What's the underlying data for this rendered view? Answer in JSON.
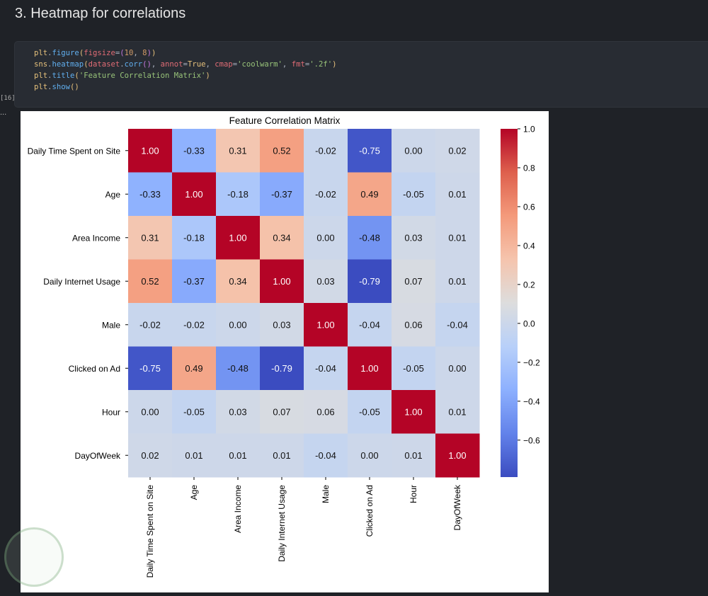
{
  "heading": "3. Heatmap for correlations",
  "cell": {
    "execution_count": "[16]",
    "output_prompt": "...",
    "code_lines": [
      [
        [
          "plt",
          "t-plt"
        ],
        [
          ".",
          "t-pl"
        ],
        [
          "figure",
          "t-fn"
        ],
        [
          "(",
          "t-p1"
        ],
        [
          "figsize",
          "t-par"
        ],
        [
          "=",
          "t-pl"
        ],
        [
          "(",
          "t-p2"
        ],
        [
          "10",
          "t-num"
        ],
        [
          ", ",
          "t-pl"
        ],
        [
          "8",
          "t-num"
        ],
        [
          ")",
          "t-p2"
        ],
        [
          ")",
          "t-p1"
        ]
      ],
      [
        [
          "sns",
          "t-plt"
        ],
        [
          ".",
          "t-pl"
        ],
        [
          "heatmap",
          "t-fn"
        ],
        [
          "(",
          "t-p1"
        ],
        [
          "dataset",
          "t-par"
        ],
        [
          ".",
          "t-pl"
        ],
        [
          "corr",
          "t-fn"
        ],
        [
          "()",
          "t-p2"
        ],
        [
          ", ",
          "t-pl"
        ],
        [
          "annot",
          "t-par"
        ],
        [
          "=",
          "t-pl"
        ],
        [
          "True",
          "t-plt"
        ],
        [
          ", ",
          "t-pl"
        ],
        [
          "cmap",
          "t-par"
        ],
        [
          "=",
          "t-pl"
        ],
        [
          "'coolwarm'",
          "t-str"
        ],
        [
          ", ",
          "t-pl"
        ],
        [
          "fmt",
          "t-par"
        ],
        [
          "=",
          "t-pl"
        ],
        [
          "'.2f'",
          "t-str"
        ],
        [
          ")",
          "t-p1"
        ]
      ],
      [
        [
          "plt",
          "t-plt"
        ],
        [
          ".",
          "t-pl"
        ],
        [
          "title",
          "t-fn"
        ],
        [
          "(",
          "t-p1"
        ],
        [
          "'Feature Correlation Matrix'",
          "t-str"
        ],
        [
          ")",
          "t-p1"
        ]
      ],
      [
        [
          "plt",
          "t-plt"
        ],
        [
          ".",
          "t-pl"
        ],
        [
          "show",
          "t-fn"
        ],
        [
          "()",
          "t-p1"
        ]
      ]
    ]
  },
  "chart_data": {
    "type": "heatmap",
    "title": "Feature Correlation Matrix",
    "labels": [
      "Daily Time Spent on Site",
      "Age",
      "Area Income",
      "Daily Internet Usage",
      "Male",
      "Clicked on Ad",
      "Hour",
      "DayOfWeek"
    ],
    "values": [
      [
        1.0,
        -0.33,
        0.31,
        0.52,
        -0.02,
        -0.75,
        0.0,
        0.02
      ],
      [
        -0.33,
        1.0,
        -0.18,
        -0.37,
        -0.02,
        0.49,
        -0.05,
        0.01
      ],
      [
        0.31,
        -0.18,
        1.0,
        0.34,
        0.0,
        -0.48,
        0.03,
        0.01
      ],
      [
        0.52,
        -0.37,
        0.34,
        1.0,
        0.03,
        -0.79,
        0.07,
        0.01
      ],
      [
        -0.02,
        -0.02,
        0.0,
        0.03,
        1.0,
        -0.04,
        0.06,
        -0.04
      ],
      [
        -0.75,
        0.49,
        -0.48,
        -0.79,
        -0.04,
        1.0,
        -0.05,
        0.0
      ],
      [
        0.0,
        -0.05,
        0.03,
        0.07,
        0.06,
        -0.05,
        1.0,
        0.01
      ],
      [
        0.02,
        0.01,
        0.01,
        0.01,
        -0.04,
        0.0,
        0.01,
        1.0
      ]
    ],
    "colormap": "coolwarm",
    "color_range": [
      -0.79,
      1.0
    ],
    "colorbar_ticks": [
      "1.0",
      "0.8",
      "0.6",
      "0.4",
      "0.2",
      "0.0",
      "−0.2",
      "−0.4",
      "−0.6"
    ],
    "colorbar_tick_values": [
      1.0,
      0.8,
      0.6,
      0.4,
      0.2,
      0.0,
      -0.2,
      -0.4,
      -0.6
    ]
  }
}
